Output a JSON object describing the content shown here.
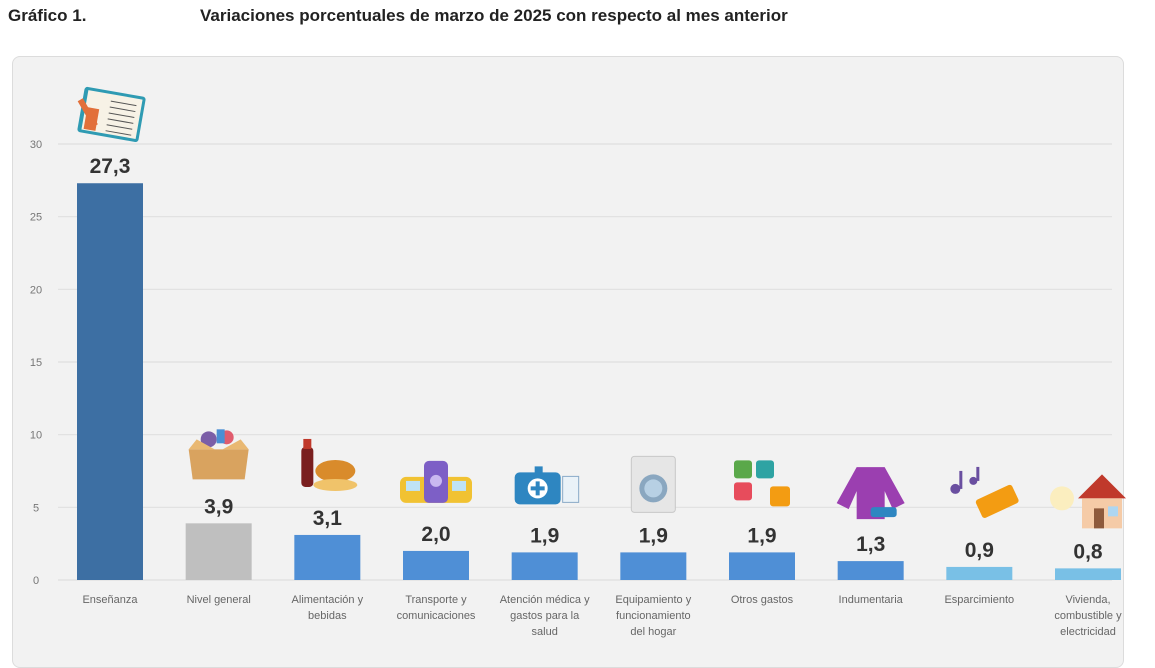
{
  "header": {
    "label": "Gráfico 1.",
    "title": "Variaciones porcentuales de marzo de 2025 con respecto al mes anterior"
  },
  "chart_data": {
    "type": "bar",
    "title": "Variaciones porcentuales de marzo de 2025 con respecto al mes anterior",
    "xlabel": "",
    "ylabel": "",
    "ylim": [
      0,
      30
    ],
    "yticks": [
      0,
      5,
      10,
      15,
      20,
      25,
      30
    ],
    "grid": true,
    "categories": [
      [
        "Enseñanza"
      ],
      [
        "Nivel general"
      ],
      [
        "Alimentación y",
        "bebidas"
      ],
      [
        "Transporte y",
        "comunicaciones"
      ],
      [
        "Atención médica y",
        "gastos para la",
        "salud"
      ],
      [
        "Equipamiento y",
        "funcionamiento",
        "del hogar"
      ],
      [
        "Otros gastos"
      ],
      [
        "Indumentaria"
      ],
      [
        "Esparcimiento"
      ],
      [
        "Vivienda,",
        "combustible y",
        "electricidad"
      ]
    ],
    "values": [
      27.3,
      3.9,
      3.1,
      2.0,
      1.9,
      1.9,
      1.9,
      1.3,
      0.9,
      0.8
    ],
    "value_labels": [
      "27,3",
      "3,9",
      "3,1",
      "2,0",
      "1,9",
      "1,9",
      "1,9",
      "1,3",
      "0,9",
      "0,8"
    ],
    "colors": [
      "#3d6fa3",
      "#bfbfbf",
      "#4f8fd6",
      "#4f8fd6",
      "#4f8fd6",
      "#4f8fd6",
      "#4f8fd6",
      "#4f8fd6",
      "#79c0e6",
      "#79c0e6"
    ],
    "icons": [
      "book-pencil-icon",
      "grocery-box-icon",
      "food-drink-icon",
      "phone-bus-icon",
      "medical-kit-icon",
      "washing-machine-icon",
      "puzzle-money-icon",
      "clothing-icon",
      "music-ticket-icon",
      "house-bulb-icon"
    ]
  }
}
